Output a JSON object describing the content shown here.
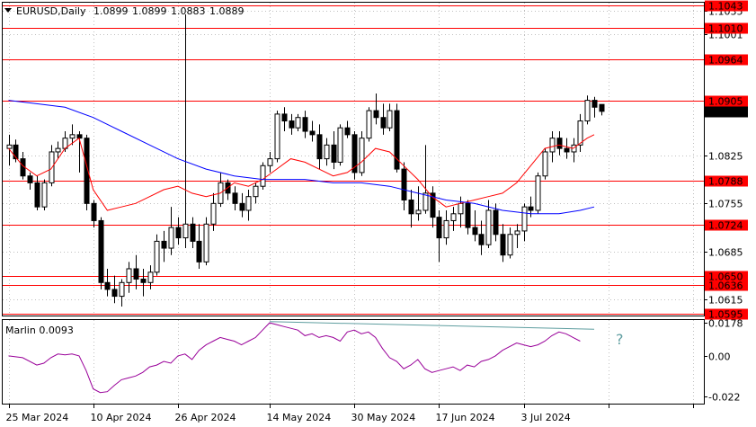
{
  "symbol_info": {
    "symbol": "EURUSD,Daily",
    "o": "1.0899",
    "h": "1.0899",
    "l": "1.0883",
    "c": "1.0889"
  },
  "colors": {
    "level_line": "#ff0000",
    "level_badge": "#ff0000",
    "ma_fast": "#ff0000",
    "ma_slow": "#0000ff",
    "oscillator": "#990099",
    "trendline": "#5f9ea0",
    "candle_bull": "#ffffff",
    "candle_bear": "#000000",
    "current_price_badge": "#000000"
  },
  "chart_data": [
    {
      "type": "candlestick",
      "title": "EURUSD,Daily",
      "ylim": [
        1.0592,
        1.1047
      ],
      "price_ticks": [
        "1.1035",
        "1.1001",
        "1.0825",
        "1.0755",
        "1.0685",
        "1.0615"
      ],
      "date_labels": [
        {
          "label": "25 Mar 2024",
          "index": 0
        },
        {
          "label": "10 Apr 2024",
          "index": 12
        },
        {
          "label": "26 Apr 2024",
          "index": 24
        },
        {
          "label": "14 May 2024",
          "index": 37
        },
        {
          "label": "30 May 2024",
          "index": 49
        },
        {
          "label": "17 Jun 2024",
          "index": 61
        },
        {
          "label": "3 Jul 2024",
          "index": 73
        }
      ],
      "levels": [
        {
          "label": "1.1043",
          "value": 1.1043
        },
        {
          "label": "1.1010",
          "value": 1.101
        },
        {
          "label": "1.0964",
          "value": 1.0964
        },
        {
          "label": "1.0905",
          "value": 1.0905
        },
        {
          "label": "1.0788",
          "value": 1.0788
        },
        {
          "label": "1.0724",
          "value": 1.0724
        },
        {
          "label": "1.0650",
          "value": 1.065
        },
        {
          "label": "1.0636",
          "value": 1.0636
        },
        {
          "label": "1.0595",
          "value": 1.0595
        }
      ],
      "current_price_label": "1.0889",
      "current_price": 1.0889,
      "candles": [
        [
          1.0835,
          1.0855,
          1.081,
          1.084
        ],
        [
          1.084,
          1.0848,
          1.0815,
          1.082
        ],
        [
          1.082,
          1.083,
          1.079,
          1.0795
        ],
        [
          1.0795,
          1.08,
          1.0775,
          1.0785
        ],
        [
          1.0785,
          1.0795,
          1.0745,
          1.075
        ],
        [
          1.075,
          1.079,
          1.0745,
          1.0785
        ],
        [
          1.0785,
          1.084,
          1.078,
          1.083
        ],
        [
          1.083,
          1.0845,
          1.082,
          1.0835
        ],
        [
          1.0835,
          1.086,
          1.083,
          1.085
        ],
        [
          1.085,
          1.087,
          1.084,
          1.0855
        ],
        [
          1.0855,
          1.086,
          1.08,
          1.085
        ],
        [
          1.085,
          1.0855,
          1.0745,
          1.0755
        ],
        [
          1.0755,
          1.076,
          1.072,
          1.073
        ],
        [
          1.073,
          1.0735,
          1.063,
          1.064
        ],
        [
          1.064,
          1.066,
          1.062,
          1.063
        ],
        [
          1.063,
          1.065,
          1.061,
          1.062
        ],
        [
          1.062,
          1.0645,
          1.0605,
          1.064
        ],
        [
          1.064,
          1.067,
          1.0625,
          1.066
        ],
        [
          1.066,
          1.068,
          1.063,
          1.0645
        ],
        [
          1.0645,
          1.066,
          1.062,
          1.064
        ],
        [
          1.064,
          1.0665,
          1.063,
          1.0655
        ],
        [
          1.0655,
          1.071,
          1.065,
          1.07
        ],
        [
          1.07,
          1.0715,
          1.067,
          1.069
        ],
        [
          1.069,
          1.075,
          1.068,
          1.072
        ],
        [
          1.072,
          1.0735,
          1.0695,
          1.0705
        ],
        [
          1.0705,
          1.103,
          1.069,
          1.0725
        ],
        [
          1.0725,
          1.0735,
          1.069,
          1.07
        ],
        [
          1.07,
          1.0725,
          1.066,
          1.067
        ],
        [
          1.067,
          1.0735,
          1.0665,
          1.0725
        ],
        [
          1.0725,
          1.077,
          1.0715,
          1.0755
        ],
        [
          1.0755,
          1.08,
          1.075,
          1.0785
        ],
        [
          1.0785,
          1.079,
          1.076,
          1.077
        ],
        [
          1.077,
          1.078,
          1.0745,
          1.0755
        ],
        [
          1.0755,
          1.077,
          1.0735,
          1.0745
        ],
        [
          1.0745,
          1.0775,
          1.073,
          1.0765
        ],
        [
          1.0765,
          1.0785,
          1.0755,
          1.078
        ],
        [
          1.078,
          1.0815,
          1.0775,
          1.081
        ],
        [
          1.081,
          1.083,
          1.08,
          1.082
        ],
        [
          1.082,
          1.089,
          1.0815,
          1.0885
        ],
        [
          1.0885,
          1.0895,
          1.086,
          1.0875
        ],
        [
          1.0875,
          1.0885,
          1.0855,
          1.0865
        ],
        [
          1.0865,
          1.0885,
          1.086,
          1.088
        ],
        [
          1.088,
          1.089,
          1.085,
          1.086
        ],
        [
          1.086,
          1.0875,
          1.0845,
          1.0855
        ],
        [
          1.0855,
          1.087,
          1.0805,
          1.082
        ],
        [
          1.082,
          1.085,
          1.081,
          1.084
        ],
        [
          1.084,
          1.086,
          1.0805,
          1.0815
        ],
        [
          1.0815,
          1.087,
          1.081,
          1.0865
        ],
        [
          1.0865,
          1.0875,
          1.085,
          1.0855
        ],
        [
          1.0855,
          1.086,
          1.079,
          1.08
        ],
        [
          1.08,
          1.086,
          1.0795,
          1.085
        ],
        [
          1.085,
          1.0895,
          1.0845,
          1.089
        ],
        [
          1.089,
          1.0915,
          1.087,
          1.088
        ],
        [
          1.088,
          1.09,
          1.0855,
          1.0865
        ],
        [
          1.0865,
          1.09,
          1.086,
          1.089
        ],
        [
          1.089,
          1.09,
          1.08,
          1.0805
        ],
        [
          1.0805,
          1.0815,
          1.0745,
          1.076
        ],
        [
          1.076,
          1.0775,
          1.072,
          1.074
        ],
        [
          1.074,
          1.078,
          1.073,
          1.0745
        ],
        [
          1.0745,
          1.084,
          1.074,
          1.077
        ],
        [
          1.077,
          1.078,
          1.072,
          1.0735
        ],
        [
          1.0735,
          1.0745,
          1.067,
          1.0705
        ],
        [
          1.0705,
          1.0745,
          1.0695,
          1.073
        ],
        [
          1.073,
          1.075,
          1.0715,
          1.074
        ],
        [
          1.074,
          1.0765,
          1.072,
          1.0755
        ],
        [
          1.0755,
          1.076,
          1.071,
          1.072
        ],
        [
          1.072,
          1.0745,
          1.07,
          1.071
        ],
        [
          1.071,
          1.073,
          1.068,
          1.0695
        ],
        [
          1.0695,
          1.076,
          1.069,
          1.0745
        ],
        [
          1.0745,
          1.0755,
          1.07,
          1.071
        ],
        [
          1.071,
          1.0725,
          1.067,
          1.068
        ],
        [
          1.068,
          1.072,
          1.0675,
          1.071
        ],
        [
          1.071,
          1.0725,
          1.069,
          1.0715
        ],
        [
          1.0715,
          1.0755,
          1.07,
          1.075
        ],
        [
          1.075,
          1.0765,
          1.0735,
          1.0745
        ],
        [
          1.0745,
          1.08,
          1.074,
          1.0795
        ],
        [
          1.0795,
          1.0835,
          1.079,
          1.083
        ],
        [
          1.083,
          1.086,
          1.0815,
          1.085
        ],
        [
          1.085,
          1.086,
          1.0825,
          1.0835
        ],
        [
          1.0835,
          1.085,
          1.082,
          1.083
        ],
        [
          1.083,
          1.085,
          1.0815,
          1.084
        ],
        [
          1.084,
          1.0885,
          1.083,
          1.0875
        ],
        [
          1.0875,
          1.0912,
          1.087,
          1.0905
        ],
        [
          1.0905,
          1.091,
          1.088,
          1.0895
        ],
        [
          1.0899,
          1.0899,
          1.0883,
          1.0889
        ]
      ],
      "ma_fast": [
        [
          0,
          1.0835
        ],
        [
          2,
          1.081
        ],
        [
          4,
          1.0795
        ],
        [
          6,
          1.0805
        ],
        [
          8,
          1.0835
        ],
        [
          10,
          1.085
        ],
        [
          12,
          1.0775
        ],
        [
          14,
          1.0745
        ],
        [
          16,
          1.075
        ],
        [
          18,
          1.0755
        ],
        [
          20,
          1.0765
        ],
        [
          22,
          1.0775
        ],
        [
          24,
          1.078
        ],
        [
          26,
          1.077
        ],
        [
          28,
          1.0765
        ],
        [
          30,
          1.077
        ],
        [
          32,
          1.0785
        ],
        [
          34,
          1.078
        ],
        [
          36,
          1.079
        ],
        [
          38,
          1.0805
        ],
        [
          40,
          1.082
        ],
        [
          42,
          1.0815
        ],
        [
          44,
          1.0805
        ],
        [
          46,
          1.0795
        ],
        [
          48,
          1.08
        ],
        [
          50,
          1.0815
        ],
        [
          52,
          1.0835
        ],
        [
          54,
          1.083
        ],
        [
          56,
          1.081
        ],
        [
          58,
          1.079
        ],
        [
          60,
          1.0765
        ],
        [
          62,
          1.075
        ],
        [
          64,
          1.0755
        ],
        [
          66,
          1.076
        ],
        [
          68,
          1.0765
        ],
        [
          70,
          1.077
        ],
        [
          72,
          1.0785
        ],
        [
          74,
          1.081
        ],
        [
          76,
          1.0835
        ],
        [
          78,
          1.084
        ],
        [
          80,
          1.0835
        ],
        [
          82,
          1.085
        ],
        [
          83,
          1.0855
        ]
      ],
      "ma_slow": [
        [
          0,
          1.0905
        ],
        [
          4,
          1.09
        ],
        [
          8,
          1.0895
        ],
        [
          12,
          1.088
        ],
        [
          16,
          1.086
        ],
        [
          20,
          1.084
        ],
        [
          24,
          1.082
        ],
        [
          28,
          1.0805
        ],
        [
          32,
          1.0795
        ],
        [
          36,
          1.079
        ],
        [
          40,
          1.079
        ],
        [
          42,
          1.079
        ],
        [
          46,
          1.0785
        ],
        [
          50,
          1.0785
        ],
        [
          54,
          1.078
        ],
        [
          58,
          1.077
        ],
        [
          62,
          1.076
        ],
        [
          66,
          1.0755
        ],
        [
          70,
          1.0745
        ],
        [
          74,
          1.074
        ],
        [
          78,
          1.074
        ],
        [
          81,
          1.0745
        ],
        [
          83,
          1.075
        ]
      ]
    },
    {
      "type": "line",
      "title": "Marlin 0.0093",
      "ylim": [
        -0.026,
        0.0195
      ],
      "y_ticks": [
        "0.0178",
        "0.00",
        "-0.022"
      ],
      "annotation": "?",
      "series": [
        {
          "name": "Marlin",
          "values": [
            [
              0,
              0.0
            ],
            [
              2,
              -0.001
            ],
            [
              4,
              -0.005
            ],
            [
              5,
              -0.004
            ],
            [
              6,
              -0.001
            ],
            [
              7,
              0.001
            ],
            [
              8,
              0.0005
            ],
            [
              9,
              0.001
            ],
            [
              10,
              0.0
            ],
            [
              11,
              -0.008
            ],
            [
              12,
              -0.018
            ],
            [
              13,
              -0.02
            ],
            [
              14,
              -0.0195
            ],
            [
              15,
              -0.016
            ],
            [
              16,
              -0.013
            ],
            [
              17,
              -0.012
            ],
            [
              18,
              -0.011
            ],
            [
              19,
              -0.009
            ],
            [
              20,
              -0.006
            ],
            [
              21,
              -0.005
            ],
            [
              22,
              -0.003
            ],
            [
              23,
              -0.004
            ],
            [
              24,
              0.0
            ],
            [
              25,
              0.001
            ],
            [
              26,
              -0.002
            ],
            [
              27,
              0.003
            ],
            [
              28,
              0.006
            ],
            [
              29,
              0.008
            ],
            [
              30,
              0.01
            ],
            [
              31,
              0.009
            ],
            [
              32,
              0.008
            ],
            [
              33,
              0.006
            ],
            [
              34,
              0.008
            ],
            [
              35,
              0.01
            ],
            [
              36,
              0.014
            ],
            [
              37,
              0.018
            ],
            [
              38,
              0.017
            ],
            [
              39,
              0.016
            ],
            [
              40,
              0.015
            ],
            [
              41,
              0.014
            ],
            [
              42,
              0.011
            ],
            [
              43,
              0.012
            ],
            [
              44,
              0.01
            ],
            [
              45,
              0.011
            ],
            [
              46,
              0.01
            ],
            [
              47,
              0.008
            ],
            [
              48,
              0.013
            ],
            [
              49,
              0.014
            ],
            [
              50,
              0.012
            ],
            [
              51,
              0.013
            ],
            [
              52,
              0.01
            ],
            [
              53,
              0.004
            ],
            [
              54,
              -0.001
            ],
            [
              55,
              -0.003
            ],
            [
              56,
              -0.007
            ],
            [
              57,
              -0.005
            ],
            [
              58,
              -0.002
            ],
            [
              59,
              -0.007
            ],
            [
              60,
              -0.009
            ],
            [
              61,
              -0.008
            ],
            [
              62,
              -0.007
            ],
            [
              63,
              -0.006
            ],
            [
              64,
              -0.008
            ],
            [
              65,
              -0.005
            ],
            [
              66,
              -0.006
            ],
            [
              67,
              -0.003
            ],
            [
              68,
              -0.002
            ],
            [
              69,
              0.0
            ],
            [
              70,
              0.003
            ],
            [
              71,
              0.005
            ],
            [
              72,
              0.007
            ],
            [
              73,
              0.006
            ],
            [
              74,
              0.005
            ],
            [
              75,
              0.006
            ],
            [
              76,
              0.008
            ],
            [
              77,
              0.011
            ],
            [
              78,
              0.013
            ],
            [
              79,
              0.012
            ],
            [
              80,
              0.01
            ],
            [
              81,
              0.008
            ]
          ]
        }
      ],
      "trendline": [
        [
          37,
          0.0186
        ],
        [
          83,
          0.0145
        ]
      ]
    }
  ]
}
